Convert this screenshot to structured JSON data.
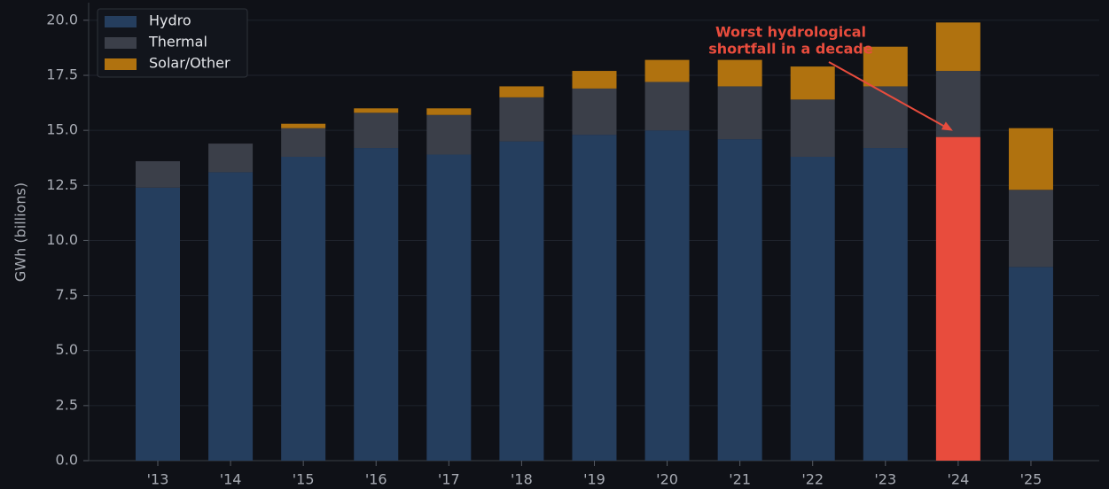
{
  "chart_data": {
    "type": "stacked_bar",
    "ylabel": "GWh (billions)",
    "categories": [
      "'13",
      "'14",
      "'15",
      "'16",
      "'17",
      "'18",
      "'19",
      "'20",
      "'21",
      "'22",
      "'23",
      "'24",
      "'25"
    ],
    "series": [
      {
        "name": "Hydro",
        "color": "#253e5e",
        "values": [
          12.4,
          13.1,
          13.8,
          14.2,
          13.9,
          14.5,
          14.8,
          15.0,
          14.6,
          13.8,
          14.2,
          14.7,
          8.8
        ]
      },
      {
        "name": "Thermal",
        "color": "#3b3f49",
        "values": [
          1.2,
          1.3,
          1.3,
          1.6,
          1.8,
          2.0,
          2.1,
          2.2,
          2.4,
          2.6,
          2.8,
          3.0,
          3.5
        ]
      },
      {
        "name": "Solar/Other",
        "color": "#b0720f",
        "values": [
          0,
          0,
          0.2,
          0.2,
          0.3,
          0.5,
          0.8,
          1.0,
          1.2,
          1.5,
          1.8,
          2.2,
          2.8
        ]
      }
    ],
    "highlight": {
      "category": "'24",
      "series": "Hydro",
      "color": "#e84c3d"
    },
    "annotation": {
      "text": [
        "Worst hydrological",
        "shortfall in a decade"
      ],
      "color": "#e84c3d"
    },
    "ylim": [
      0,
      20.8
    ],
    "yticks": [
      {
        "value": 0,
        "label": "0.0"
      },
      2.5,
      {
        "value": 5,
        "label": "5.0"
      },
      7.5,
      {
        "value": 10,
        "label": "10.0"
      },
      12.5,
      {
        "value": 15,
        "label": "15.0"
      },
      17.5,
      {
        "value": 20,
        "label": "20.0"
      }
    ],
    "grid": true,
    "legend": "upper left"
  }
}
